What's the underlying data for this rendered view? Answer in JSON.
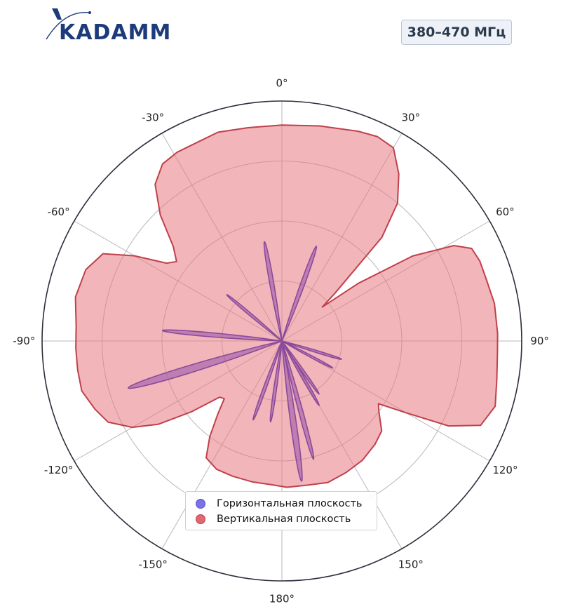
{
  "logo": {
    "text": "KADAMM",
    "color": "#1d3a7a"
  },
  "badge": {
    "label": "380–470 МГц"
  },
  "chart_data": {
    "type": "polar",
    "angle_zero": "top",
    "angle_direction": "clockwise",
    "angle_tick_labels": [
      {
        "deg": 0,
        "label": "0°"
      },
      {
        "deg": 30,
        "label": "30°"
      },
      {
        "deg": 60,
        "label": "60°"
      },
      {
        "deg": 90,
        "label": "90°"
      },
      {
        "deg": 120,
        "label": "120°"
      },
      {
        "deg": 150,
        "label": "150°"
      },
      {
        "deg": 180,
        "label": "180°"
      },
      {
        "deg": -150,
        "label": "-150°"
      },
      {
        "deg": -120,
        "label": "-120°"
      },
      {
        "deg": -90,
        "label": "-90°"
      },
      {
        "deg": -60,
        "label": "-60°"
      },
      {
        "deg": -30,
        "label": "-30°"
      }
    ],
    "rmax": 1.0,
    "radial_grid": [
      0.25,
      0.5,
      0.75
    ],
    "radial_tick_labels_shown": false,
    "grid": true,
    "legend_position": "bottom-center",
    "series": [
      {
        "name": "Горизонтальная плоскость",
        "color": "#6a5acd",
        "fill": "rgba(150,80,170,0.55)",
        "lobes": [
          {
            "angle": -10,
            "r": 0.42,
            "width": 3.5
          },
          {
            "angle": 20,
            "r": 0.42,
            "width": 3.5
          },
          {
            "angle": -50,
            "r": 0.3,
            "width": 3
          },
          {
            "angle": -85,
            "r": 0.5,
            "width": 3
          },
          {
            "angle": -107,
            "r": 0.67,
            "width": 4
          },
          {
            "angle": 107,
            "r": 0.26,
            "width": 3
          },
          {
            "angle": 118,
            "r": 0.24,
            "width": 3
          },
          {
            "angle": 145,
            "r": 0.27,
            "width": 3
          },
          {
            "angle": 150,
            "r": 0.31,
            "width": 3
          },
          {
            "angle": 165,
            "r": 0.51,
            "width": 3
          },
          {
            "angle": 172,
            "r": 0.59,
            "width": 3.5
          },
          {
            "angle": 188,
            "r": 0.34,
            "width": 3
          },
          {
            "angle": 200,
            "r": 0.35,
            "width": 3
          }
        ]
      },
      {
        "name": "Вертикальная плоскость",
        "color": "#c0404a",
        "fill": "rgba(230,120,130,0.55)",
        "points": [
          [
            0,
            0.9
          ],
          [
            10,
            0.91
          ],
          [
            20,
            0.93
          ],
          [
            25,
            0.94
          ],
          [
            30,
            0.93
          ],
          [
            35,
            0.85
          ],
          [
            40,
            0.75
          ],
          [
            44,
            0.6
          ],
          [
            48,
            0.3
          ],
          [
            50,
            0.22
          ],
          [
            53,
            0.4
          ],
          [
            57,
            0.65
          ],
          [
            61,
            0.82
          ],
          [
            64,
            0.88
          ],
          [
            68,
            0.89
          ],
          [
            73,
            0.89
          ],
          [
            80,
            0.9
          ],
          [
            88,
            0.9
          ],
          [
            93,
            0.9
          ],
          [
            100,
            0.91
          ],
          [
            107,
            0.93
          ],
          [
            113,
            0.9
          ],
          [
            117,
            0.78
          ],
          [
            120,
            0.6
          ],
          [
            123,
            0.48
          ],
          [
            126,
            0.5
          ],
          [
            132,
            0.56
          ],
          [
            138,
            0.58
          ],
          [
            146,
            0.6
          ],
          [
            154,
            0.61
          ],
          [
            162,
            0.62
          ],
          [
            170,
            0.61
          ],
          [
            178,
            0.61
          ],
          [
            185,
            0.6
          ],
          [
            192,
            0.6
          ],
          [
            200,
            0.6
          ],
          [
            207,
            0.6
          ],
          [
            213,
            0.58
          ],
          [
            217,
            0.5
          ],
          [
            221,
            0.41
          ],
          [
            225,
            0.34
          ],
          [
            228,
            0.35
          ],
          [
            232,
            0.48
          ],
          [
            236,
            0.62
          ],
          [
            240,
            0.72
          ],
          [
            245,
            0.8
          ],
          [
            250,
            0.83
          ],
          [
            256,
            0.86
          ],
          [
            262,
            0.86
          ],
          [
            268,
            0.86
          ],
          [
            274,
            0.86
          ],
          [
            282,
            0.88
          ],
          [
            290,
            0.87
          ],
          [
            296,
            0.83
          ],
          [
            300,
            0.71
          ],
          [
            304,
            0.58
          ],
          [
            307,
            0.55
          ],
          [
            311,
            0.6
          ],
          [
            316,
            0.73
          ],
          [
            321,
            0.84
          ],
          [
            326,
            0.89
          ],
          [
            331,
            0.9
          ],
          [
            337,
            0.9
          ],
          [
            343,
            0.91
          ],
          [
            351,
            0.9
          ],
          [
            360,
            0.9
          ]
        ]
      }
    ]
  }
}
